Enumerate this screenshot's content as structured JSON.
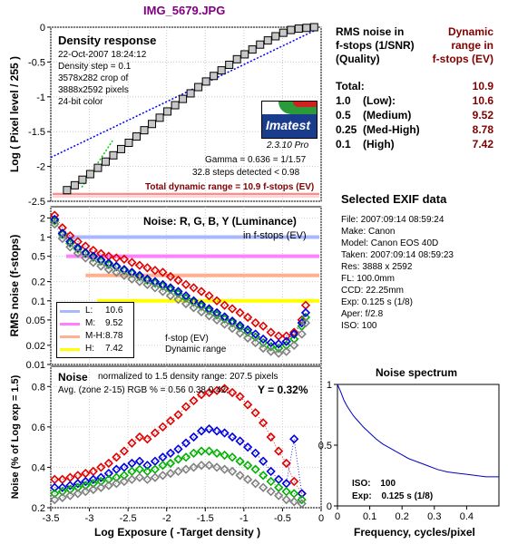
{
  "file_title": "IMG_5679.JPG",
  "density_panel": {
    "title": "Density response",
    "info_lines": [
      "22-Oct-2007 18:24:12",
      "Density step = 0.1",
      "3578x282 crop of",
      "3888x2592 pixels",
      "24-bit color"
    ],
    "ylabel": "Log ( Pixel level / 255 )",
    "logo_text": "Imatest",
    "version": "2.3.10",
    "version_suffix": "Pro",
    "gamma_text": "Gamma = 0.636 = 1/1.57",
    "steps_text": "32.8 steps detected < 0.98",
    "total_dr_text": "Total dynamic range = 10.9 f-stops (EV)",
    "colors": {
      "steps_fill": "#c8c8c8",
      "blue_fit": "#0000ff",
      "green_fit": "#00cc00",
      "dr_line": "#ff4040"
    }
  },
  "noise_fstop_panel": {
    "title": "Noise: R, G, B, Y (Luminance)",
    "subtitle": "in f-stops (EV)",
    "ylabel": "RMS noise (f-stops)",
    "legend": [
      {
        "key": "L:",
        "value": "10.6",
        "color": "#a8b8ff"
      },
      {
        "key": "M:",
        "value": "9.52",
        "color": "#ff80ff"
      },
      {
        "key": "M-H:",
        "value": "8.78",
        "color": "#ffb090"
      },
      {
        "key": "H:",
        "value": "7.42",
        "color": "#ffff00"
      }
    ],
    "note_lines": [
      "f-stop (EV)",
      "Dynamic range"
    ]
  },
  "noise_pct_panel": {
    "title": "Noise",
    "normalized_text": "normalized to 1.5 density range: 207.5 pixels",
    "avg_text": "Avg. (zone 2-15) RGB % = 0.56  0.38  0.42;",
    "y_text": "Y = 0.32%",
    "ylabel": "Noise (% of Log exp = 1.5)",
    "xlabel": "Log Exposure ( -Target density )"
  },
  "rms_table": {
    "head_left": [
      "RMS noise in",
      "f-stops (1/SNR)",
      "(Quality)"
    ],
    "head_right": [
      "Dynamic",
      "range in",
      "f-stops (EV)"
    ],
    "rows": [
      {
        "label": "Total:",
        "quality": "",
        "value": "10.9"
      },
      {
        "label": "1.0",
        "quality": "(Low):",
        "value": "10.6"
      },
      {
        "label": "0.5",
        "quality": "(Medium)",
        "value": "9.52"
      },
      {
        "label": "0.25",
        "quality": "(Med-High)",
        "value": "8.78"
      },
      {
        "label": "0.1",
        "quality": "(High)",
        "value": "7.42"
      }
    ]
  },
  "exif": {
    "title": "Selected EXIF data",
    "lines": [
      "File:  2007:09:14 08:59:24",
      "Make:  Canon",
      "Model:  Canon EOS 40D",
      "Taken:  2007:09:14 08:59:23",
      "Res:   3888 x 2592",
      "FL:   100.0mm",
      "CCD:   22.25mm",
      "Exp:   0.125 s  (1/8)",
      "Aper:  f/2.8",
      "ISO:   100"
    ]
  },
  "spectrum_panel": {
    "title": "Noise spectrum",
    "xlabel": "Frequency, cycles/pixel",
    "iso_label": "ISO:",
    "iso_value": "100",
    "exp_label": "Exp:",
    "exp_value": "0.125 s   (1/8)"
  },
  "chart_data": [
    {
      "type": "line",
      "id": "density_response",
      "title": "Density response",
      "xlabel": "",
      "ylabel": "Log ( Pixel level / 255 )",
      "xlim": [
        -3.5,
        0
      ],
      "ylim": [
        -2.5,
        0
      ],
      "x_ticks": [
        -3.5,
        -3,
        -2.5,
        -2,
        -1.5,
        -1,
        -0.5,
        0
      ],
      "y_ticks": [
        0,
        -0.5,
        -1,
        -1.5,
        -2,
        -2.5
      ],
      "y_tick_labels": [
        "0",
        "-0.5",
        "-1",
        "-1.5",
        "-2",
        "-2.5"
      ],
      "grid": true,
      "series": [
        {
          "name": "",
          "x": [
            -3.29,
            -3.19,
            -3.09,
            -2.99,
            -2.89,
            -2.79,
            -2.69,
            -2.59,
            -2.49,
            -2.39,
            -2.29,
            -2.19,
            -2.09,
            -1.99,
            -1.89,
            -1.79,
            -1.69,
            -1.59,
            -1.49,
            -1.39,
            -1.29,
            -1.19,
            -1.09,
            -0.99,
            -0.89,
            -0.79,
            -0.69,
            -0.59,
            -0.49,
            -0.39,
            -0.29,
            -0.19,
            -0.09
          ],
          "y": [
            -2.34,
            -2.27,
            -2.19,
            -2.11,
            -2.02,
            -1.93,
            -1.84,
            -1.75,
            -1.66,
            -1.57,
            -1.48,
            -1.39,
            -1.3,
            -1.21,
            -1.12,
            -1.03,
            -0.95,
            -0.86,
            -0.78,
            -0.7,
            -0.62,
            -0.54,
            -0.46,
            -0.39,
            -0.32,
            -0.25,
            -0.19,
            -0.13,
            -0.08,
            -0.04,
            -0.02,
            -0.01,
            0.0
          ]
        }
      ],
      "fit_blue_y_range": [
        -1.87,
        -0.03
      ],
      "fit_green_y_range": [
        -2.3,
        -1.63
      ]
    },
    {
      "type": "scatter",
      "id": "rms_noise_fstops",
      "ylabel": "RMS noise (f-stops)",
      "yscale": "log",
      "ylim": [
        0.01,
        3
      ],
      "xlim": [
        -3.5,
        0
      ],
      "x_ticks": [
        -3.5,
        -3,
        -2.5,
        -2,
        -1.5,
        -1,
        -0.5,
        0
      ],
      "y_ticks": [
        2,
        1,
        0.5,
        0.2,
        0.1,
        0.05,
        0.02,
        0.01
      ],
      "y_tick_labels": [
        "2",
        "1",
        "0.5",
        "0.2",
        "0.1",
        "0.05",
        "0.02",
        "0.01"
      ],
      "levels": [
        {
          "name": "L",
          "y": 1.0,
          "x_start": -3.4,
          "color": "#a8b8ff"
        },
        {
          "name": "M",
          "y": 0.5,
          "x_start": -3.3,
          "color": "#ff80ff"
        },
        {
          "name": "M-H",
          "y": 0.25,
          "x_start": -3.05,
          "color": "#ffb090"
        },
        {
          "name": "H",
          "y": 0.1,
          "x_start": -2.9,
          "color": "#ffff00"
        }
      ],
      "x": [
        -3.45,
        -3.35,
        -3.25,
        -3.15,
        -3.05,
        -2.95,
        -2.85,
        -2.75,
        -2.65,
        -2.55,
        -2.45,
        -2.35,
        -2.25,
        -2.15,
        -2.05,
        -1.95,
        -1.85,
        -1.75,
        -1.65,
        -1.55,
        -1.45,
        -1.35,
        -1.25,
        -1.15,
        -1.05,
        -0.95,
        -0.85,
        -0.75,
        -0.65,
        -0.55,
        -0.45,
        -0.35,
        -0.25,
        -0.2
      ],
      "series": [
        {
          "name": "R",
          "color": "#e00000",
          "values": [
            2.2,
            1.4,
            1.05,
            0.85,
            0.72,
            0.62,
            0.55,
            0.5,
            0.47,
            0.45,
            0.4,
            0.36,
            0.33,
            0.3,
            0.28,
            0.24,
            0.21,
            0.18,
            0.16,
            0.14,
            0.12,
            0.1,
            0.085,
            0.075,
            0.065,
            0.055,
            0.045,
            0.04,
            0.032,
            0.028,
            0.028,
            0.032,
            0.05,
            0.085
          ]
        },
        {
          "name": "G",
          "color": "#00b000",
          "values": [
            1.8,
            1.1,
            0.8,
            0.65,
            0.55,
            0.48,
            0.42,
            0.37,
            0.34,
            0.3,
            0.27,
            0.24,
            0.21,
            0.19,
            0.17,
            0.15,
            0.13,
            0.11,
            0.095,
            0.082,
            0.07,
            0.06,
            0.052,
            0.045,
            0.038,
            0.032,
            0.027,
            0.022,
            0.019,
            0.018,
            0.02,
            0.025,
            0.04,
            0.055
          ]
        },
        {
          "name": "B",
          "color": "#0000e0",
          "values": [
            1.9,
            1.15,
            0.85,
            0.68,
            0.57,
            0.5,
            0.44,
            0.39,
            0.35,
            0.31,
            0.28,
            0.25,
            0.22,
            0.2,
            0.18,
            0.16,
            0.14,
            0.12,
            0.1,
            0.088,
            0.075,
            0.065,
            0.056,
            0.048,
            0.041,
            0.035,
            0.03,
            0.025,
            0.022,
            0.021,
            0.023,
            0.03,
            0.045,
            0.065
          ]
        },
        {
          "name": "Y",
          "color": "#808080",
          "values": [
            1.6,
            0.95,
            0.7,
            0.56,
            0.47,
            0.4,
            0.35,
            0.31,
            0.28,
            0.25,
            0.22,
            0.2,
            0.18,
            0.16,
            0.14,
            0.12,
            0.105,
            0.09,
            0.078,
            0.067,
            0.058,
            0.05,
            0.043,
            0.037,
            0.031,
            0.026,
            0.022,
            0.018,
            0.016,
            0.015,
            0.016,
            0.02,
            0.03,
            0.045
          ]
        }
      ]
    },
    {
      "type": "scatter",
      "id": "noise_percent",
      "title": "Noise",
      "xlabel": "Log Exposure ( -Target density )",
      "ylabel": "Noise (% of Log exp = 1.5)",
      "xlim": [
        -3.5,
        0
      ],
      "ylim": [
        0.2,
        0.9
      ],
      "x_ticks": [
        -3.5,
        -3,
        -2.5,
        -2,
        -1.5,
        -1,
        -0.5,
        0
      ],
      "x_tick_labels": [
        "-3.5",
        "-3",
        "-2.5",
        "-2",
        "-1.5",
        "-1",
        "-0.5",
        "0"
      ],
      "y_ticks": [
        0.2,
        0.4,
        0.6,
        0.8
      ],
      "y_tick_labels": [
        "0.2",
        "0.4",
        "0.6",
        "0.8"
      ],
      "x": [
        -3.45,
        -3.35,
        -3.25,
        -3.15,
        -3.05,
        -2.95,
        -2.85,
        -2.75,
        -2.65,
        -2.55,
        -2.45,
        -2.35,
        -2.25,
        -2.15,
        -2.05,
        -1.95,
        -1.85,
        -1.75,
        -1.65,
        -1.55,
        -1.45,
        -1.35,
        -1.25,
        -1.15,
        -1.05,
        -0.95,
        -0.85,
        -0.75,
        -0.65,
        -0.55,
        -0.45,
        -0.35,
        -0.25
      ],
      "series": [
        {
          "name": "R",
          "color": "#e00000",
          "values": [
            0.34,
            0.34,
            0.35,
            0.36,
            0.37,
            0.38,
            0.4,
            0.42,
            0.45,
            0.48,
            0.52,
            0.55,
            0.54,
            0.57,
            0.6,
            0.63,
            0.66,
            0.7,
            0.73,
            0.76,
            0.77,
            0.78,
            0.79,
            0.77,
            0.75,
            0.71,
            0.67,
            0.62,
            0.55,
            0.48,
            0.42,
            0.33,
            0.27
          ]
        },
        {
          "name": "B",
          "color": "#0000e0",
          "values": [
            0.3,
            0.3,
            0.31,
            0.32,
            0.33,
            0.34,
            0.35,
            0.37,
            0.39,
            0.4,
            0.42,
            0.43,
            0.41,
            0.43,
            0.45,
            0.47,
            0.49,
            0.52,
            0.55,
            0.58,
            0.59,
            0.58,
            0.57,
            0.55,
            0.53,
            0.5,
            0.47,
            0.43,
            0.38,
            0.34,
            0.32,
            0.54,
            0.27
          ]
        },
        {
          "name": "G",
          "color": "#00b000",
          "values": [
            0.27,
            0.28,
            0.29,
            0.3,
            0.31,
            0.32,
            0.33,
            0.34,
            0.35,
            0.36,
            0.38,
            0.39,
            0.38,
            0.39,
            0.41,
            0.42,
            0.44,
            0.45,
            0.47,
            0.48,
            0.48,
            0.47,
            0.46,
            0.45,
            0.43,
            0.41,
            0.39,
            0.36,
            0.33,
            0.3,
            0.28,
            0.27,
            0.24
          ]
        },
        {
          "name": "Y",
          "color": "#808080",
          "values": [
            0.24,
            0.25,
            0.26,
            0.27,
            0.28,
            0.29,
            0.3,
            0.31,
            0.32,
            0.33,
            0.34,
            0.35,
            0.34,
            0.35,
            0.36,
            0.37,
            0.38,
            0.39,
            0.4,
            0.41,
            0.41,
            0.4,
            0.39,
            0.38,
            0.36,
            0.34,
            0.32,
            0.3,
            0.28,
            0.26,
            0.24,
            0.23,
            0.22
          ]
        }
      ]
    },
    {
      "type": "line",
      "id": "noise_spectrum",
      "title": "Noise spectrum",
      "xlabel": "Frequency, cycles/pixel",
      "xlim": [
        0,
        0.5
      ],
      "ylim": [
        0,
        1
      ],
      "x_ticks": [
        0,
        0.1,
        0.2,
        0.3,
        0.4
      ],
      "x_tick_labels": [
        "0",
        "0.1",
        "0.2",
        "0.3",
        "0.4"
      ],
      "y_ticks": [
        0,
        0.5,
        1
      ],
      "y_tick_labels": [
        "0",
        "0.5",
        "1"
      ],
      "series": [
        {
          "name": "",
          "color": "#0000c0",
          "x": [
            0.0,
            0.01,
            0.02,
            0.03,
            0.04,
            0.05,
            0.06,
            0.07,
            0.08,
            0.1,
            0.12,
            0.14,
            0.16,
            0.18,
            0.2,
            0.22,
            0.25,
            0.28,
            0.31,
            0.34,
            0.37,
            0.4,
            0.43,
            0.46,
            0.5
          ],
          "y": [
            1.0,
            0.94,
            0.87,
            0.82,
            0.78,
            0.74,
            0.71,
            0.68,
            0.65,
            0.6,
            0.55,
            0.51,
            0.48,
            0.45,
            0.42,
            0.39,
            0.36,
            0.33,
            0.3,
            0.28,
            0.27,
            0.26,
            0.25,
            0.24,
            0.24
          ]
        }
      ]
    }
  ]
}
